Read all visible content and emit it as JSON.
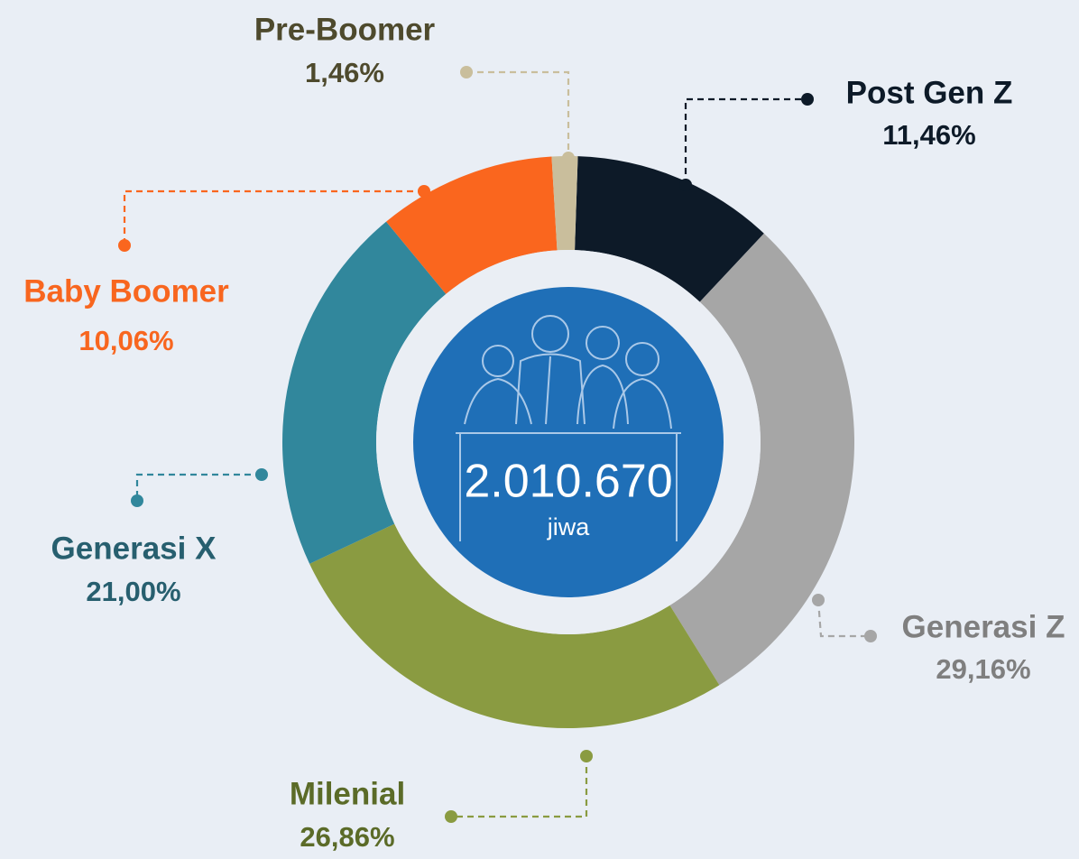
{
  "chart_data": {
    "type": "donut",
    "categories": [
      "Post Gen Z",
      "Generasi Z",
      "Milenial",
      "Generasi X",
      "Baby Boomer",
      "Pre-Boomer"
    ],
    "values": [
      11.46,
      29.16,
      26.86,
      21.0,
      10.06,
      1.46
    ],
    "value_labels": [
      "11,46%",
      "29,16%",
      "26,86%",
      "21,00%",
      "10,06%",
      "1,46%"
    ],
    "colors": [
      "#0d1a28",
      "#a6a6a6",
      "#8a9b41",
      "#31879c",
      "#fa661e",
      "#c9be9c"
    ],
    "center_label": "2.010.670",
    "center_unit": "jiwa"
  }
}
